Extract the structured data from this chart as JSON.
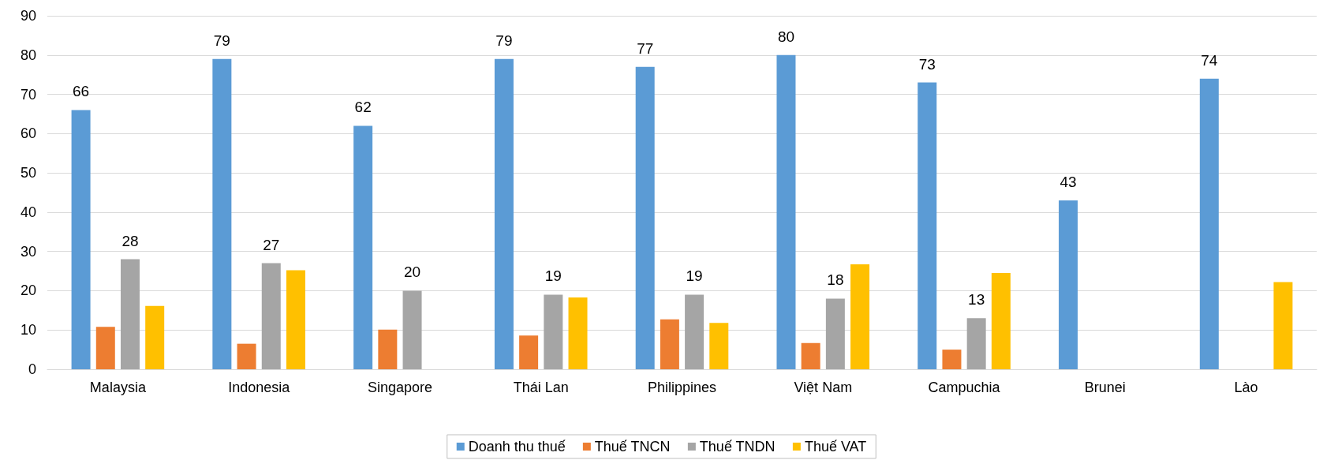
{
  "chart_data": {
    "type": "bar",
    "categories": [
      "Malaysia",
      "Indonesia",
      "Singapore",
      "Thái Lan",
      "Philippines",
      "Việt Nam",
      "Campuchia",
      "Brunei",
      "Lào"
    ],
    "series": [
      {
        "name": "Doanh thu thuế",
        "color": "#5b9bd5",
        "values": [
          66,
          79,
          62,
          79,
          77,
          80,
          73,
          43,
          74
        ],
        "value_labels": [
          "66",
          "79",
          "62",
          "79",
          "77",
          "80",
          "73",
          "43",
          "74"
        ]
      },
      {
        "name": "Thuế TNCN",
        "color": "#ed7d31",
        "values": [
          10.8,
          6.5,
          10.1,
          8.6,
          12.7,
          6.7,
          5.0,
          null,
          null
        ]
      },
      {
        "name": "Thuế TNDN",
        "color": "#a5a5a5",
        "values": [
          28,
          27,
          20,
          19,
          19,
          18,
          13,
          null,
          null
        ],
        "value_labels": [
          "28",
          "27",
          "20",
          "19",
          "19",
          "18",
          "13",
          null,
          null
        ]
      },
      {
        "name": "Thuế VAT",
        "color": "#ffc000",
        "values": [
          16.1,
          25.2,
          null,
          18.3,
          11.8,
          26.7,
          24.5,
          null,
          22.2
        ]
      }
    ],
    "ylim": [
      0,
      90
    ],
    "yticks": [
      0,
      10,
      20,
      30,
      40,
      50,
      60,
      70,
      80,
      90
    ],
    "grid": "y",
    "legend": "bottom"
  }
}
